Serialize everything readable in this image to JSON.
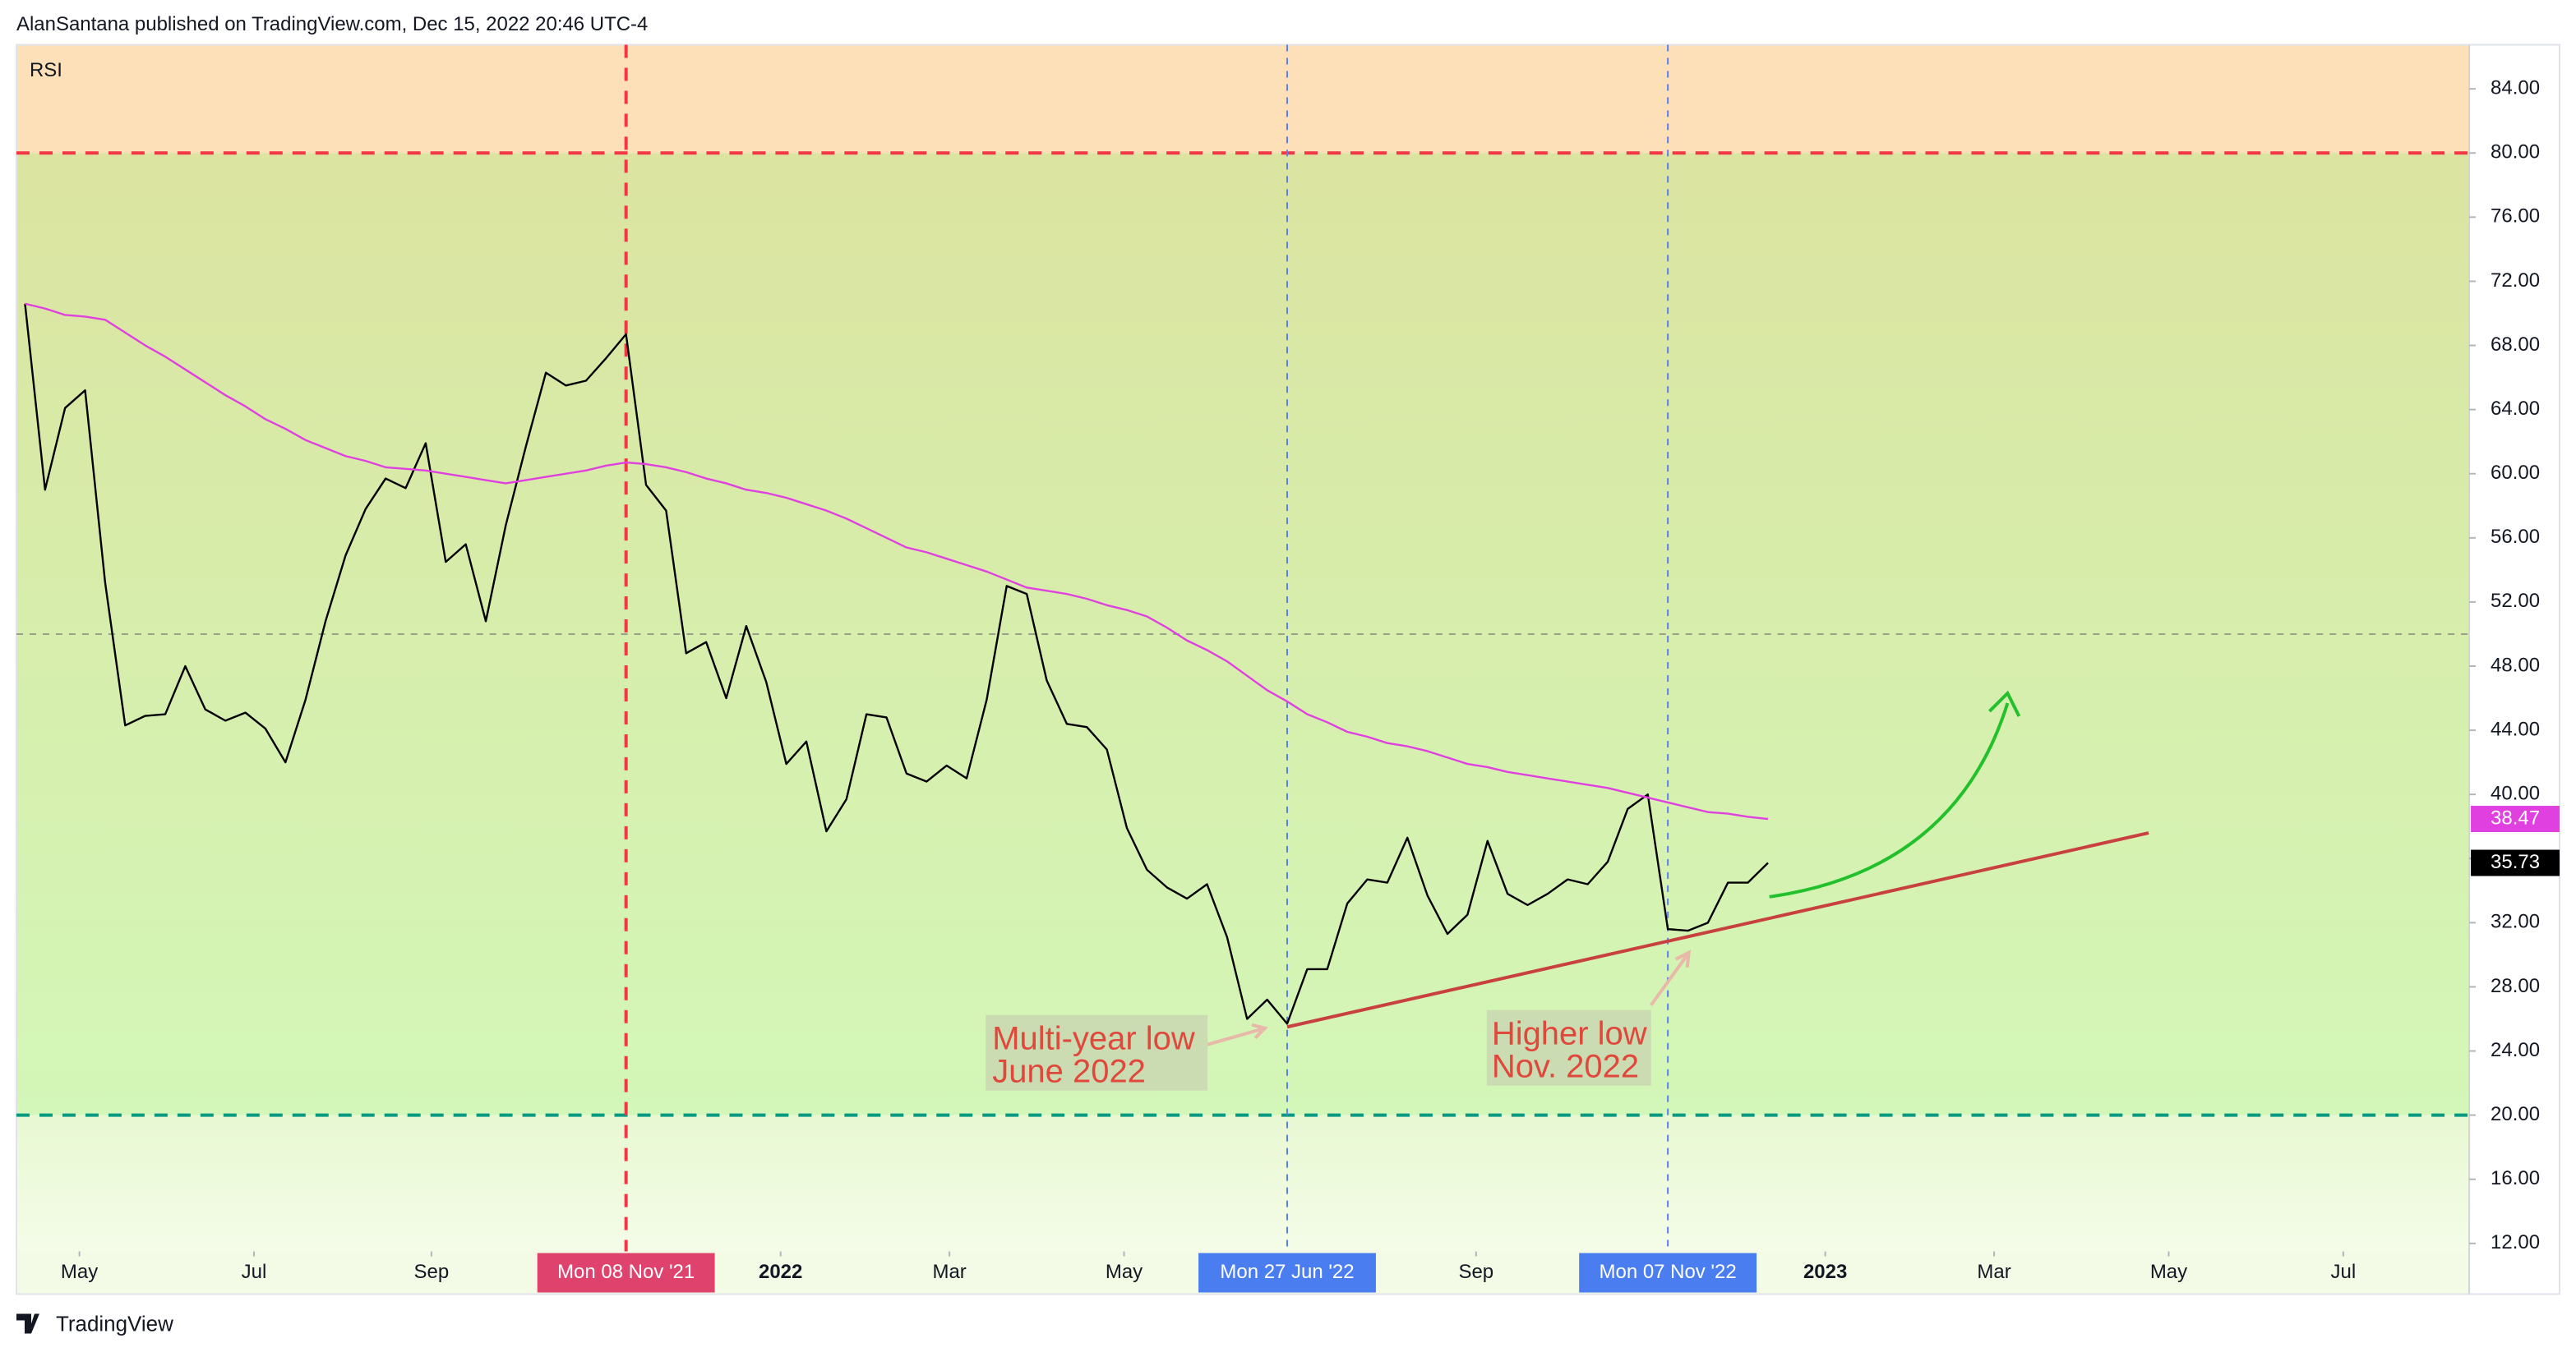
{
  "header": {
    "text": "AlanSantana published on TradingView.com, Dec 15, 2022 20:46 UTC-4"
  },
  "footer": {
    "brand": "TradingView"
  },
  "chart_data": {
    "type": "line",
    "title": "RSI",
    "x": [
      "2021-04-12",
      "2021-04-19",
      "2021-04-26",
      "2021-05-03",
      "2021-05-10",
      "2021-05-17",
      "2021-05-24",
      "2021-05-31",
      "2021-06-07",
      "2021-06-14",
      "2021-06-21",
      "2021-06-28",
      "2021-07-05",
      "2021-07-12",
      "2021-07-19",
      "2021-07-26",
      "2021-08-02",
      "2021-08-09",
      "2021-08-16",
      "2021-08-23",
      "2021-08-30",
      "2021-09-06",
      "2021-09-13",
      "2021-09-20",
      "2021-09-27",
      "2021-10-04",
      "2021-10-11",
      "2021-10-18",
      "2021-10-25",
      "2021-11-01",
      "2021-11-08",
      "2021-11-15",
      "2021-11-22",
      "2021-11-29",
      "2021-12-06",
      "2021-12-13",
      "2021-12-20",
      "2021-12-27",
      "2022-01-03",
      "2022-01-10",
      "2022-01-17",
      "2022-01-24",
      "2022-01-31",
      "2022-02-07",
      "2022-02-14",
      "2022-02-21",
      "2022-02-28",
      "2022-03-07",
      "2022-03-14",
      "2022-03-21",
      "2022-03-28",
      "2022-04-04",
      "2022-04-11",
      "2022-04-18",
      "2022-04-25",
      "2022-05-02",
      "2022-05-09",
      "2022-05-16",
      "2022-05-23",
      "2022-05-30",
      "2022-06-06",
      "2022-06-13",
      "2022-06-20",
      "2022-06-27",
      "2022-07-04",
      "2022-07-11",
      "2022-07-18",
      "2022-07-25",
      "2022-08-01",
      "2022-08-08",
      "2022-08-15",
      "2022-08-22",
      "2022-08-29",
      "2022-09-05",
      "2022-09-12",
      "2022-09-19",
      "2022-09-26",
      "2022-10-03",
      "2022-10-10",
      "2022-10-17",
      "2022-10-24",
      "2022-10-31",
      "2022-11-07",
      "2022-11-14",
      "2022-11-21",
      "2022-11-28",
      "2022-12-05",
      "2022-12-12"
    ],
    "series": [
      {
        "name": "RSI",
        "color": "#000000",
        "values": [
          70.6,
          59.0,
          64.1,
          65.2,
          53.2,
          44.3,
          44.9,
          45.0,
          48.0,
          45.3,
          44.6,
          45.1,
          44.1,
          42.0,
          45.9,
          50.8,
          54.9,
          57.8,
          59.7,
          59.1,
          61.9,
          54.5,
          55.6,
          50.8,
          56.8,
          61.7,
          66.3,
          65.5,
          65.8,
          67.2,
          68.7,
          59.3,
          57.7,
          48.8,
          49.5,
          46.0,
          50.5,
          47.0,
          41.9,
          43.3,
          37.7,
          39.7,
          45.0,
          44.8,
          41.3,
          40.8,
          41.8,
          41.0,
          45.9,
          53.0,
          52.5,
          47.1,
          44.4,
          44.2,
          42.8,
          37.9,
          35.3,
          34.2,
          33.5,
          34.4,
          31.1,
          26.0,
          27.2,
          25.7,
          29.1,
          29.1,
          33.2,
          34.7,
          34.5,
          37.3,
          33.7,
          31.3,
          32.5,
          37.1,
          33.8,
          33.1,
          33.8,
          34.7,
          34.4,
          35.8,
          39.1,
          40.0,
          31.6,
          31.5,
          32.0,
          34.5,
          34.5,
          35.73
        ]
      },
      {
        "color": "#e040e0",
        "values": [
          70.6,
          70.3,
          69.9,
          69.8,
          69.6,
          68.8,
          68.0,
          67.3,
          66.5,
          65.7,
          64.9,
          64.2,
          63.4,
          62.8,
          62.1,
          61.6,
          61.1,
          60.8,
          60.4,
          60.3,
          60.2,
          60.0,
          59.8,
          59.6,
          59.4,
          59.6,
          59.8,
          60.0,
          60.2,
          60.5,
          60.7,
          60.6,
          60.4,
          60.1,
          59.7,
          59.4,
          59.0,
          58.8,
          58.5,
          58.1,
          57.7,
          57.2,
          56.6,
          56.0,
          55.4,
          55.1,
          54.7,
          54.3,
          53.9,
          53.4,
          52.9,
          52.7,
          52.5,
          52.2,
          51.8,
          51.5,
          51.1,
          50.4,
          49.6,
          49.0,
          48.3,
          47.4,
          46.5,
          45.8,
          45.0,
          44.5,
          43.9,
          43.6,
          43.2,
          43.0,
          42.7,
          42.3,
          41.9,
          41.7,
          41.4,
          41.2,
          41.0,
          40.8,
          40.6,
          40.4,
          40.1,
          39.8,
          39.5,
          39.2,
          38.9,
          38.8,
          38.6,
          38.47
        ]
      }
    ],
    "xlim": [
      "2021-04-09",
      "2023-08-14"
    ],
    "xticks": [
      {
        "value": "2021-05-01",
        "label": "May"
      },
      {
        "value": "2021-07-01",
        "label": "Jul"
      },
      {
        "value": "2021-09-01",
        "label": "Sep"
      },
      {
        "value": "2022-01-01",
        "label": "2022"
      },
      {
        "value": "2022-03-01",
        "label": "Mar"
      },
      {
        "value": "2022-05-01",
        "label": "May"
      },
      {
        "value": "2022-09-01",
        "label": "Sep"
      },
      {
        "value": "2023-01-01",
        "label": "2023"
      },
      {
        "value": "2023-03-01",
        "label": "Mar"
      },
      {
        "value": "2023-05-01",
        "label": "May"
      },
      {
        "value": "2023-07-01",
        "label": "Jul"
      }
    ],
    "ylim": [
      11.5,
      86.75
    ],
    "yticks": [
      {
        "value": 12,
        "label": "12.00"
      },
      {
        "value": 16,
        "label": "16.00"
      },
      {
        "value": 20,
        "label": "20.00"
      },
      {
        "value": 24,
        "label": "24.00"
      },
      {
        "value": 28,
        "label": "28.00"
      },
      {
        "value": 32,
        "label": "32.00"
      },
      {
        "value": 36,
        "label": "36.00"
      },
      {
        "value": 40,
        "label": "40.00"
      },
      {
        "value": 44,
        "label": "44.00"
      },
      {
        "value": 48,
        "label": "48.00"
      },
      {
        "value": 52,
        "label": "52.00"
      },
      {
        "value": 56,
        "label": "56.00"
      },
      {
        "value": 60,
        "label": "60.00"
      },
      {
        "value": 64,
        "label": "64.00"
      },
      {
        "value": 68,
        "label": "68.00"
      },
      {
        "value": 72,
        "label": "72.00"
      },
      {
        "value": 76,
        "label": "76.00"
      },
      {
        "value": 80,
        "label": "80.00"
      },
      {
        "value": 84,
        "label": "84.00"
      }
    ],
    "grid": false,
    "hlines": [
      {
        "value": 80,
        "color": "#f23645"
      },
      {
        "value": 50,
        "color": "#9aa08a"
      },
      {
        "value": 20,
        "color": "#089981"
      }
    ],
    "markers": [
      {
        "x": "2021-11-08",
        "label": "Mon 08 Nov '21",
        "color": "#f23645",
        "label_color": "#e0426e"
      },
      {
        "x": "2022-06-27",
        "label": "Mon 27 Jun '22",
        "color": "#5b7ff0",
        "label_color": "#4a7ef0"
      },
      {
        "x": "2022-11-07",
        "label": "Mon 07 Nov '22",
        "color": "#5b7ff0",
        "label_color": "#4a7ef0"
      }
    ],
    "trendline": {
      "x": [
        "2022-06-27",
        "2023-04-24"
      ],
      "y": [
        25.5,
        37.6
      ],
      "color": "#c94040"
    },
    "annotations": [
      {
        "lines": [
          "Multi-year low",
          "June 2022"
        ]
      },
      {
        "lines": [
          "Higher low",
          "Nov. 2022"
        ]
      }
    ]
  }
}
